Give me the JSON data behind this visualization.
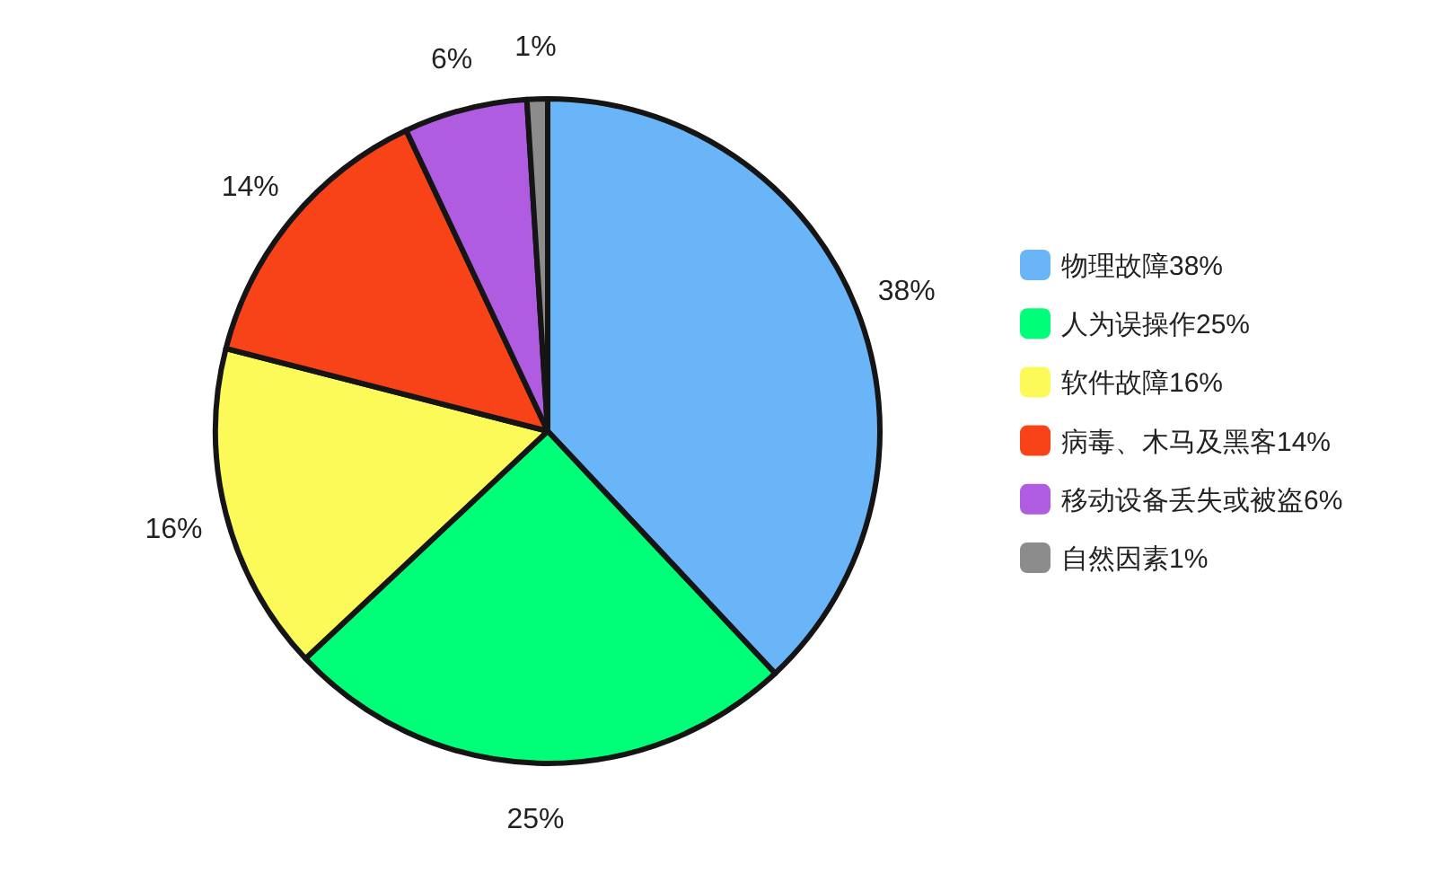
{
  "chart_data": {
    "type": "pie",
    "categories": [
      "物理故障38%",
      "人为误操作25%",
      "软件故障16%",
      "病毒、木马及黑客14%",
      "移动设备丢失或被盗6%",
      "自然因素1%"
    ],
    "values": [
      38,
      25,
      16,
      14,
      6,
      1
    ],
    "colors": [
      "#6ab4f8",
      "#00ff78",
      "#fcfa58",
      "#f84218",
      "#b05ce0",
      "#8c8c8c"
    ],
    "value_labels": [
      "38%",
      "25%",
      "16%",
      "14%",
      "6%",
      "1%"
    ],
    "legend": "right"
  }
}
